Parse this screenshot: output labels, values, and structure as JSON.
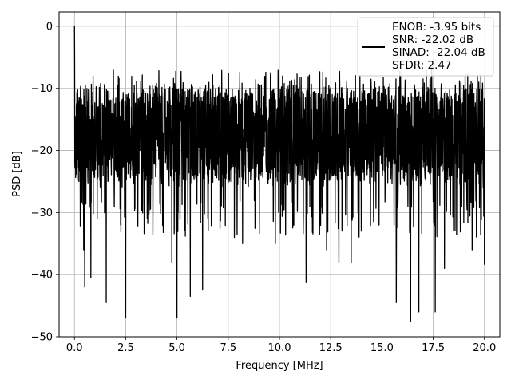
{
  "chart_data": {
    "type": "line",
    "title": "",
    "xlabel": "Frequency [MHz]",
    "ylabel": "PSD [dB]",
    "xlim": [
      -0.75,
      20.75
    ],
    "ylim": [
      -50,
      2.3
    ],
    "xticks": [
      0.0,
      2.5,
      5.0,
      7.5,
      10.0,
      12.5,
      15.0,
      17.5,
      20.0
    ],
    "xtick_labels": [
      "0.0",
      "2.5",
      "5.0",
      "7.5",
      "10.0",
      "12.5",
      "15.0",
      "17.5",
      "20.0"
    ],
    "yticks": [
      0,
      -10,
      -20,
      -30,
      -40,
      -50
    ],
    "ytick_labels": [
      "0",
      "−10",
      "−20",
      "−30",
      "−40",
      "−50"
    ],
    "grid": true,
    "legend": {
      "location": "upper right",
      "entries": [
        "ENOB: -3.95 bits",
        "SNR: -22.02 dB",
        "SINAD: -22.04 dB",
        "SFDR: 2.47"
      ]
    },
    "series": [
      {
        "color": "#000000",
        "style": "noise-spectrum",
        "x_start": 0.0,
        "x_end": 20.0,
        "peak": [
          0.0,
          0.0
        ],
        "typical_range": [
          -26,
          -9
        ],
        "deep_dips": [
          [
            0.45,
            -36
          ],
          [
            0.5,
            -42
          ],
          [
            0.8,
            -40.5
          ],
          [
            1.55,
            -44.5
          ],
          [
            2.25,
            -32
          ],
          [
            2.5,
            -47
          ],
          [
            3.55,
            -31
          ],
          [
            4.75,
            -38
          ],
          [
            5.0,
            -47
          ],
          [
            5.65,
            -43.5
          ],
          [
            6.25,
            -42.5
          ],
          [
            7.8,
            -34
          ],
          [
            8.2,
            -35
          ],
          [
            9.8,
            -35
          ],
          [
            11.3,
            -41.3
          ],
          [
            12.3,
            -36
          ],
          [
            12.9,
            -38
          ],
          [
            13.5,
            -38
          ],
          [
            15.7,
            -44.5
          ],
          [
            16.4,
            -47.5
          ],
          [
            16.8,
            -46
          ],
          [
            17.6,
            -46
          ],
          [
            18.05,
            -39
          ],
          [
            19.4,
            -36
          ],
          [
            20.0,
            -38.4
          ]
        ]
      }
    ]
  }
}
